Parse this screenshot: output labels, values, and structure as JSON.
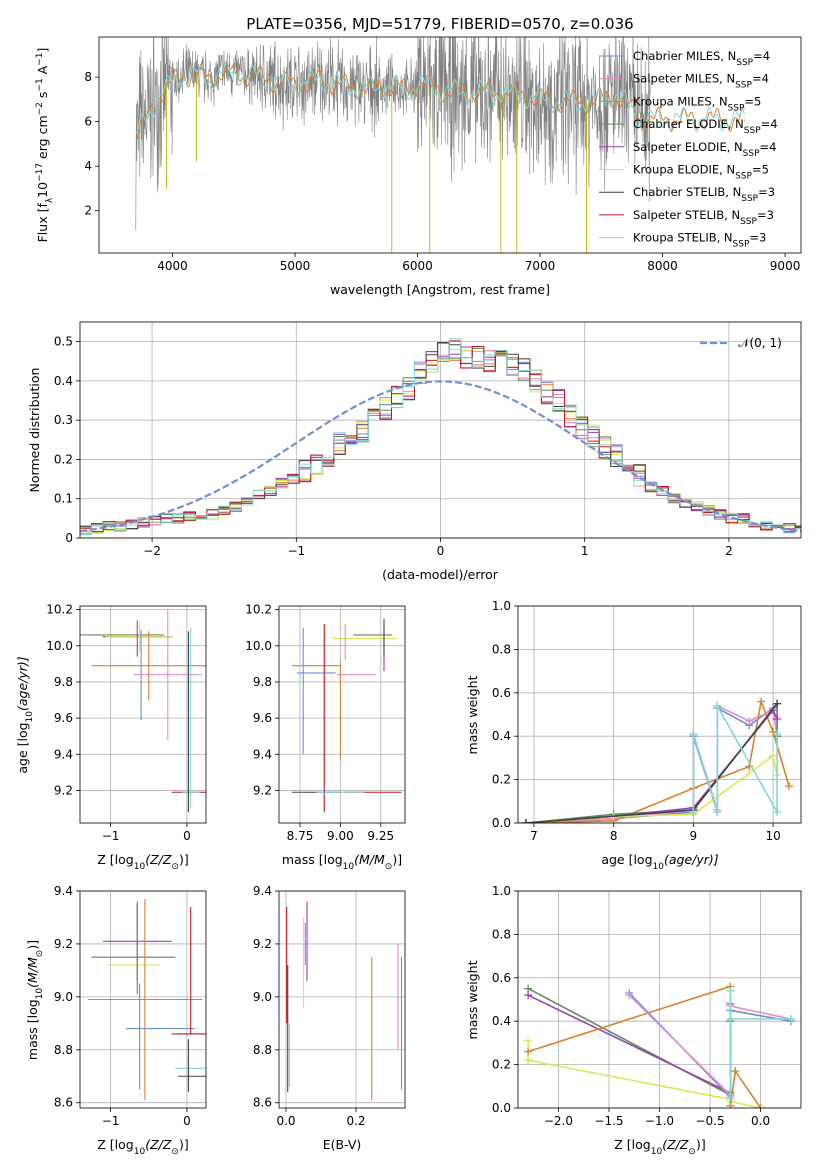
{
  "figure": {
    "title": "PLATE=0356, MJD=51779, FIBERID=0570, z=0.036"
  },
  "models": [
    {
      "name": "Chabrier MILES, N$_{SSP}$=4",
      "label_main": "Chabrier MILES, N",
      "label_sub": "SSP",
      "label_end": "=4",
      "color": "#6f8fd8"
    },
    {
      "name": "Salpeter MILES, N$_{SSP}$=4",
      "label_main": "Salpeter MILES, N",
      "label_sub": "SSP",
      "label_end": "=4",
      "color": "#e88cc8"
    },
    {
      "name": "Kroupa MILES, N$_{SSP}$=5",
      "label_main": "Kroupa MILES, N",
      "label_sub": "SSP",
      "label_end": "=5",
      "color": "#d9822b"
    },
    {
      "name": "Chabrier ELODIE, N$_{SSP}$=4",
      "label_main": "Chabrier ELODIE, N",
      "label_sub": "SSP",
      "label_end": "=4",
      "color": "#5e8c5a"
    },
    {
      "name": "Salpeter ELODIE, N$_{SSP}$=4",
      "label_main": "Salpeter ELODIE, N",
      "label_sub": "SSP",
      "label_end": "=4",
      "color": "#9b3fb5"
    },
    {
      "name": "Kroupa ELODIE, N$_{SSP}$=5",
      "label_main": "Kroupa ELODIE, N",
      "label_sub": "SSP",
      "label_end": "=5",
      "color": "#d6e85a"
    },
    {
      "name": "Chabrier STELIB, N$_{SSP}$=3",
      "label_main": "Chabrier STELIB, N",
      "label_sub": "SSP",
      "label_end": "=3",
      "color": "#444444"
    },
    {
      "name": "Salpeter STELIB, N$_{SSP}$=3",
      "label_main": "Salpeter STELIB, N",
      "label_sub": "SSP",
      "label_end": "=3",
      "color": "#c0181c"
    },
    {
      "name": "Kroupa STELIB, N$_{SSP}$=3",
      "label_main": "Kroupa STELIB, N",
      "label_sub": "SSP",
      "label_end": "=3",
      "color": "#7fd8d8"
    }
  ],
  "chart_data": [
    {
      "id": "spectrum",
      "type": "line",
      "xlabel": "wavelength [Angstrom, rest frame]",
      "ylabel_main": "Flux [f",
      "ylabel_sub": "λ",
      "ylabel_mid": "10",
      "ylabel_sup1": "−17",
      "ylabel_tail1": " erg cm",
      "ylabel_sup2": "−2",
      "ylabel_tail2": " s",
      "ylabel_sup3": "−1",
      "ylabel_tail3": " A",
      "ylabel_sup4": "−1",
      "ylabel_close": "]",
      "xlim": [
        3400,
        9130
      ],
      "ylim": [
        0.1,
        9.8
      ],
      "xticks": [
        4000,
        5000,
        6000,
        7000,
        8000,
        9000
      ],
      "yticks": [
        2,
        4,
        6,
        8
      ],
      "legend": "right",
      "grid": false,
      "data_color": "#808080",
      "model_color": "#7fd8d8",
      "model_secondary_color": "#d9822b",
      "continuum_points": [
        [
          3700,
          5.4
        ],
        [
          3800,
          6.2
        ],
        [
          3900,
          7.3
        ],
        [
          4000,
          7.7
        ],
        [
          4100,
          8.1
        ],
        [
          4200,
          8.1
        ],
        [
          4300,
          7.9
        ],
        [
          4400,
          8.2
        ],
        [
          4500,
          8.2
        ],
        [
          4700,
          8.0
        ],
        [
          4900,
          7.7
        ],
        [
          5100,
          7.7
        ],
        [
          5200,
          7.9
        ],
        [
          5400,
          7.6
        ],
        [
          5600,
          7.5
        ],
        [
          5800,
          7.6
        ],
        [
          5900,
          7.4
        ],
        [
          6000,
          7.7
        ],
        [
          6200,
          7.4
        ],
        [
          6400,
          7.3
        ],
        [
          6600,
          7.3
        ],
        [
          6800,
          7.2
        ],
        [
          7000,
          7.0
        ],
        [
          7200,
          6.9
        ],
        [
          7400,
          6.9
        ],
        [
          7500,
          7.0
        ],
        [
          7600,
          7.2
        ],
        [
          7700,
          6.8
        ],
        [
          7800,
          6.3
        ],
        [
          7900,
          6.1
        ]
      ],
      "notable_features": [
        {
          "x": 3950,
          "y": 3.0
        },
        {
          "x": 4195,
          "y": 4.2
        },
        {
          "x": 5790,
          "y": 0.1
        },
        {
          "x": 6100,
          "y": 0.1
        },
        {
          "x": 6680,
          "y": 0.1
        },
        {
          "x": 6810,
          "y": 0.1
        },
        {
          "x": 7380,
          "y": 0.1
        },
        {
          "x": 8670,
          "y": 6.0
        }
      ]
    },
    {
      "id": "residuals",
      "type": "step",
      "xlabel": "(data-model)/error",
      "ylabel": "Normed distribution",
      "xlim": [
        -2.5,
        2.5
      ],
      "ylim": [
        0,
        0.55
      ],
      "xticks": [
        -2,
        -1,
        0,
        1,
        2
      ],
      "yticks": [
        0.0,
        0.1,
        0.2,
        0.3,
        0.4,
        0.5
      ],
      "grid": true,
      "legend": "top-right",
      "normal_label": "𝒩(0, 1)",
      "normal_color": "#6f8fd8",
      "bin_edges_from": -2.5,
      "bin_width": 0.1,
      "base_hist": [
        0.02,
        0.025,
        0.03,
        0.03,
        0.035,
        0.04,
        0.045,
        0.05,
        0.05,
        0.055,
        0.06,
        0.06,
        0.07,
        0.08,
        0.09,
        0.11,
        0.12,
        0.14,
        0.15,
        0.17,
        0.19,
        0.21,
        0.24,
        0.25,
        0.27,
        0.3,
        0.33,
        0.36,
        0.38,
        0.42,
        0.45,
        0.47,
        0.48,
        0.46,
        0.46,
        0.45,
        0.46,
        0.44,
        0.43,
        0.4,
        0.37,
        0.35,
        0.31,
        0.28,
        0.26,
        0.23,
        0.21,
        0.19,
        0.16,
        0.13,
        0.12,
        0.1,
        0.09,
        0.08,
        0.07,
        0.06,
        0.05,
        0.05,
        0.04,
        0.03,
        0.03,
        0.025,
        0.02
      ]
    },
    {
      "id": "age_vs_Z",
      "type": "errorbar",
      "xlabel": "Z [log$_{10}$(Z/Z$_\\odot$)]",
      "xlabel_parts": [
        "Z [log",
        "10",
        "(Z/Z",
        "⊙",
        ")]"
      ],
      "ylabel_parts": [
        "age  [log",
        "10",
        "(age/yr)]"
      ],
      "xlim": [
        -1.4,
        0.25
      ],
      "ylim": [
        9.02,
        10.22
      ],
      "xticks": [
        -1,
        0
      ],
      "yticks": [
        9.2,
        9.4,
        9.6,
        9.8,
        10.0,
        10.2
      ],
      "grid": true,
      "points": [
        {
          "m": 3,
          "x": -0.85,
          "xerr": 0.55,
          "y": 10.06,
          "yerr": 0.0
        },
        {
          "m": 6,
          "x": -0.65,
          "xerr": 0.45,
          "y": 10.05,
          "yerr": 0.0
        },
        {
          "m": 5,
          "x": -0.62,
          "xerr": 0.45,
          "y": 10.05,
          "yerr": 0.08
        },
        {
          "m": 4,
          "x": -0.65,
          "xerr": 0.0,
          "y": 10.04,
          "yerr": 0.1
        },
        {
          "m": 2,
          "x": -0.5,
          "xerr": 0.75,
          "y": 9.89,
          "yerr": 0.19
        },
        {
          "m": 0,
          "x": -0.6,
          "xerr": 0.0,
          "y": 9.84,
          "yerr": 0.25
        },
        {
          "m": 1,
          "x": -0.25,
          "xerr": 0.45,
          "y": 9.84,
          "yerr": 0.36
        },
        {
          "m": 7,
          "x": 0.08,
          "xerr": 0.28,
          "y": 9.19,
          "yerr": 0.0
        },
        {
          "m": 8,
          "x": 0.05,
          "xerr": 0.12,
          "y": 9.19,
          "yerr": 0.0
        },
        {
          "m": 6,
          "x": 0.02,
          "xerr": 0.0,
          "y": 9.58,
          "yerr": 0.5
        },
        {
          "m": 8,
          "x": 0.05,
          "xerr": 0.0,
          "y": 9.6,
          "yerr": 0.5
        }
      ]
    },
    {
      "id": "age_vs_mass",
      "type": "errorbar",
      "xlabel_parts": [
        "mass [log",
        "10",
        "(M/M",
        "⊙",
        ")]"
      ],
      "xlim": [
        8.62,
        9.4
      ],
      "ylim": [
        9.02,
        10.22
      ],
      "xticks": [
        8.75,
        9.0,
        9.25
      ],
      "xtick_labels": [
        "8.75",
        "9.00",
        "9.25"
      ],
      "yticks": [
        9.2,
        9.4,
        9.6,
        9.8,
        10.0,
        10.2
      ],
      "grid": true,
      "points": [
        {
          "m": 2,
          "x": 8.85,
          "xerr": 0.15,
          "y": 9.89,
          "yerr": 0.0
        },
        {
          "m": 2,
          "x": 9.0,
          "xerr": 0.0,
          "y": 9.64,
          "yerr": 0.27
        },
        {
          "m": 0,
          "x": 8.77,
          "xerr": 0.0,
          "y": 9.75,
          "yerr": 0.35
        },
        {
          "m": 0,
          "x": 8.85,
          "xerr": 0.12,
          "y": 9.85,
          "yerr": 0.0
        },
        {
          "m": 1,
          "x": 9.1,
          "xerr": 0.12,
          "y": 9.84,
          "yerr": 0.0
        },
        {
          "m": 7,
          "x": 8.9,
          "xerr": 0.0,
          "y": 9.6,
          "yerr": 0.52
        },
        {
          "m": 7,
          "x": 9.2,
          "xerr": 0.18,
          "y": 9.19,
          "yerr": 0.0
        },
        {
          "m": 6,
          "x": 8.85,
          "xerr": 0.15,
          "y": 9.19,
          "yerr": 0.0
        },
        {
          "m": 8,
          "x": 9.0,
          "xerr": 0.15,
          "y": 9.19,
          "yerr": 0.0
        },
        {
          "m": 3,
          "x": 9.2,
          "xerr": 0.12,
          "y": 10.06,
          "yerr": 0.0
        },
        {
          "m": 5,
          "x": 9.15,
          "xerr": 0.2,
          "y": 10.04,
          "yerr": 0.0
        },
        {
          "m": 4,
          "x": 9.27,
          "xerr": 0.0,
          "y": 9.98,
          "yerr": 0.12
        },
        {
          "m": 6,
          "x": 9.27,
          "xerr": 0.0,
          "y": 10.05,
          "yerr": 0.1
        },
        {
          "m": 1,
          "x": 9.03,
          "xerr": 0.0,
          "y": 10.02,
          "yerr": 0.1
        }
      ]
    },
    {
      "id": "weight_vs_age",
      "type": "line",
      "xlabel_parts": [
        "age  [log",
        "10",
        "(age/yr)]"
      ],
      "ylabel": "mass weight",
      "xlim": [
        6.8,
        10.35
      ],
      "ylim": [
        0,
        1.0
      ],
      "xticks": [
        7,
        8,
        9,
        10
      ],
      "yticks": [
        0.0,
        0.2,
        0.4,
        0.6,
        0.8,
        1.0
      ],
      "grid": true,
      "series": [
        {
          "m": 0,
          "x": [
            6.9,
            8.0,
            9.0,
            9.0,
            9.3,
            9.3,
            9.7,
            10.0,
            10.05
          ],
          "y": [
            0.0,
            0.02,
            0.05,
            0.4,
            0.05,
            0.53,
            0.45,
            0.53,
            0.4
          ]
        },
        {
          "m": 1,
          "x": [
            6.9,
            8.0,
            9.0,
            9.0,
            9.3,
            9.3,
            9.7,
            10.0,
            10.05
          ],
          "y": [
            0.0,
            0.02,
            0.06,
            0.41,
            0.06,
            0.54,
            0.47,
            0.52,
            0.4
          ]
        },
        {
          "m": 2,
          "x": [
            6.9,
            8.0,
            9.0,
            9.7,
            9.85,
            10.0,
            10.2
          ],
          "y": [
            0.0,
            0.01,
            0.16,
            0.26,
            0.56,
            0.42,
            0.17
          ]
        },
        {
          "m": 3,
          "x": [
            6.9,
            8.0,
            9.0,
            10.05,
            10.05
          ],
          "y": [
            0.0,
            0.04,
            0.06,
            0.55,
            0.4
          ]
        },
        {
          "m": 4,
          "x": [
            6.9,
            8.0,
            9.0,
            10.0,
            10.05
          ],
          "y": [
            0.0,
            0.03,
            0.07,
            0.52,
            0.48
          ]
        },
        {
          "m": 5,
          "x": [
            6.9,
            8.0,
            9.0,
            10.0,
            10.05
          ],
          "y": [
            0.0,
            0.03,
            0.04,
            0.31,
            0.22
          ]
        },
        {
          "m": 6,
          "x": [
            6.9,
            9.0,
            10.05
          ],
          "y": [
            0.0,
            0.06,
            0.55
          ]
        },
        {
          "m": 8,
          "x": [
            9.0,
            9.0,
            9.3,
            9.3,
            10.05,
            10.05
          ],
          "y": [
            0.05,
            0.41,
            0.05,
            0.54,
            0.05,
            0.41
          ]
        }
      ]
    },
    {
      "id": "mass_vs_Z",
      "type": "errorbar",
      "xlabel_parts": [
        "Z [log",
        "10",
        "(Z/Z",
        "⊙",
        ")]"
      ],
      "ylabel_parts": [
        "mass [log",
        "10",
        "(M/M",
        "⊙",
        ")]"
      ],
      "xlim": [
        -1.4,
        0.25
      ],
      "ylim": [
        8.58,
        9.4
      ],
      "xticks": [
        -1,
        0
      ],
      "yticks": [
        8.6,
        8.8,
        9.0,
        9.2,
        9.4
      ],
      "grid": true,
      "points": [
        {
          "m": 4,
          "x": -0.65,
          "xerr": 0.45,
          "y": 9.21,
          "yerr": 0.15
        },
        {
          "m": 3,
          "x": -0.7,
          "xerr": 0.55,
          "y": 9.15,
          "yerr": 0.0
        },
        {
          "m": 5,
          "x": -0.7,
          "xerr": 0.35,
          "y": 9.12,
          "yerr": 0.0
        },
        {
          "m": 3,
          "x": -0.65,
          "xerr": 0.0,
          "y": 9.18,
          "yerr": 0.17
        },
        {
          "m": 2,
          "x": -0.55,
          "xerr": 0.75,
          "y": 8.99,
          "yerr": 0.38
        },
        {
          "m": 0,
          "x": -0.62,
          "xerr": 0.0,
          "y": 8.85,
          "yerr": 0.2
        },
        {
          "m": 0,
          "x": -0.35,
          "xerr": 0.45,
          "y": 8.88,
          "yerr": 0.0
        },
        {
          "m": 7,
          "x": 0.05,
          "xerr": 0.25,
          "y": 8.86,
          "yerr": 0.0
        },
        {
          "m": 7,
          "x": 0.05,
          "xerr": 0.0,
          "y": 9.1,
          "yerr": 0.24
        },
        {
          "m": 8,
          "x": 0.05,
          "xerr": 0.2,
          "y": 8.73,
          "yerr": 0.0
        },
        {
          "m": 6,
          "x": 0.08,
          "xerr": 0.2,
          "y": 8.7,
          "yerr": 0.0
        },
        {
          "m": 6,
          "x": 0.02,
          "xerr": 0.0,
          "y": 8.74,
          "yerr": 0.1
        }
      ]
    },
    {
      "id": "mass_vs_ebv",
      "type": "errorbar",
      "xlabel": "E(B-V)",
      "xlim": [
        -0.02,
        0.34
      ],
      "ylim": [
        8.58,
        9.4
      ],
      "xticks": [
        0.0,
        0.2
      ],
      "xtick_labels": [
        "0.0",
        "0.2"
      ],
      "yticks": [
        8.6,
        8.8,
        9.0,
        9.2,
        9.4
      ],
      "grid": true,
      "points": [
        {
          "m": 7,
          "x": 0.002,
          "xerr": 0.0,
          "y": 9.12,
          "yerr": 0.22
        },
        {
          "m": 6,
          "x": 0.005,
          "xerr": 0.0,
          "y": 8.88,
          "yerr": 0.24
        },
        {
          "m": 8,
          "x": 0.01,
          "xerr": 0.0,
          "y": 8.78,
          "yerr": 0.12
        },
        {
          "m": 5,
          "x": 0.05,
          "xerr": 0.0,
          "y": 9.13,
          "yerr": 0.17
        },
        {
          "m": 4,
          "x": 0.06,
          "xerr": 0.0,
          "y": 9.21,
          "yerr": 0.15
        },
        {
          "m": 0,
          "x": 0.055,
          "xerr": 0.0,
          "y": 9.2,
          "yerr": 0.08
        },
        {
          "m": 2,
          "x": 0.245,
          "xerr": 0.0,
          "y": 8.88,
          "yerr": 0.27
        },
        {
          "m": 1,
          "x": 0.32,
          "xerr": 0.0,
          "y": 9.0,
          "yerr": 0.2
        },
        {
          "m": 0,
          "x": 0.33,
          "xerr": 0.0,
          "y": 8.9,
          "yerr": 0.25
        }
      ]
    },
    {
      "id": "weight_vs_Z",
      "type": "line",
      "xlabel_parts": [
        "Z [log",
        "10",
        "(Z/Z",
        "⊙",
        ")]"
      ],
      "ylabel": "mass weight",
      "xlim": [
        -2.4,
        0.4
      ],
      "ylim": [
        0,
        1.0
      ],
      "xticks": [
        -2.0,
        -1.5,
        -1.0,
        -0.5,
        0.0
      ],
      "xtick_labels": [
        "−2.0",
        "−1.5",
        "−1.0",
        "−0.5",
        "0.0"
      ],
      "yticks": [
        0.0,
        0.2,
        0.4,
        0.6,
        0.8,
        1.0
      ],
      "grid": true,
      "series": [
        {
          "m": 3,
          "x": [
            -2.3,
            -0.3,
            -0.3
          ],
          "y": [
            0.55,
            0.06,
            0.4
          ]
        },
        {
          "m": 4,
          "x": [
            -2.3,
            -0.3,
            -0.3
          ],
          "y": [
            0.52,
            0.07,
            0.48
          ]
        },
        {
          "m": 5,
          "x": [
            -2.3,
            -2.3,
            -0.3,
            -0.3,
            0.0
          ],
          "y": [
            0.31,
            0.22,
            0.04,
            0.03,
            0.0
          ]
        },
        {
          "m": 2,
          "x": [
            -2.3,
            -0.3,
            -0.3,
            -0.25,
            0.0
          ],
          "y": [
            0.26,
            0.56,
            0.01,
            0.17,
            0.0
          ]
        },
        {
          "m": 0,
          "x": [
            -1.3,
            -0.3,
            -0.3,
            0.3
          ],
          "y": [
            0.53,
            0.05,
            0.45,
            0.4
          ]
        },
        {
          "m": 1,
          "x": [
            -1.3,
            -0.3,
            -0.3,
            0.3
          ],
          "y": [
            0.52,
            0.06,
            0.47,
            0.41
          ]
        },
        {
          "m": 8,
          "x": [
            -0.3,
            -0.3,
            -0.3,
            0.3
          ],
          "y": [
            0.54,
            0.05,
            0.41,
            0.41
          ]
        }
      ]
    }
  ]
}
